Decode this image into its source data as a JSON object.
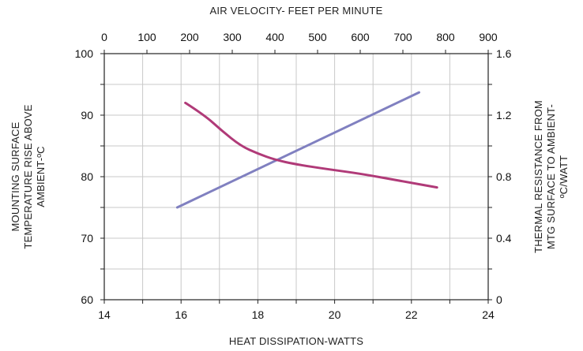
{
  "chart_data": {
    "type": "line",
    "title": "",
    "x_top": {
      "label": "AIR VELOCITY- FEET PER MINUTE",
      "range": [
        0,
        900
      ],
      "ticks": [
        "0",
        "100",
        "200",
        "300",
        "400",
        "500",
        "600",
        "700",
        "800",
        "900"
      ]
    },
    "x_bottom": {
      "label": "HEAT DISSIPATION-WATTS",
      "range": [
        14,
        24
      ],
      "ticks": [
        "14",
        "16",
        "18",
        "20",
        "22",
        "24"
      ]
    },
    "y_left": {
      "label_lines": [
        "MOUNTING SURFACE",
        "TEMPERATURE RISE ABOVE",
        "AMBIENT-ºC"
      ],
      "range": [
        60,
        100
      ],
      "ticks": [
        "60",
        "70",
        "80",
        "90",
        "100"
      ]
    },
    "y_right": {
      "label_lines": [
        "THERMAL RESISTANCE FROM",
        "MTG SURFACE TO AMBIENT-",
        "ºC/WATT"
      ],
      "range": [
        0,
        1.6
      ],
      "ticks": [
        "0",
        "0.4",
        "0.8",
        "1.2",
        "1.6"
      ]
    },
    "grid": true,
    "series": [
      {
        "color": "#8080c0",
        "x_axis": "x_bottom",
        "y_axis": "y_left",
        "points": [
          [
            15.9,
            75.0
          ],
          [
            22.2,
            93.7
          ]
        ]
      },
      {
        "color": "#b03a78",
        "x_axis": "x_top",
        "y_axis": "y_right",
        "points": [
          [
            190,
            1.28
          ],
          [
            235,
            1.2
          ],
          [
            275,
            1.1
          ],
          [
            320,
            1.0
          ],
          [
            360,
            0.95
          ],
          [
            400,
            0.91
          ],
          [
            450,
            0.88
          ],
          [
            520,
            0.85
          ],
          [
            600,
            0.82
          ],
          [
            700,
            0.77
          ],
          [
            780,
            0.73
          ]
        ]
      }
    ]
  }
}
